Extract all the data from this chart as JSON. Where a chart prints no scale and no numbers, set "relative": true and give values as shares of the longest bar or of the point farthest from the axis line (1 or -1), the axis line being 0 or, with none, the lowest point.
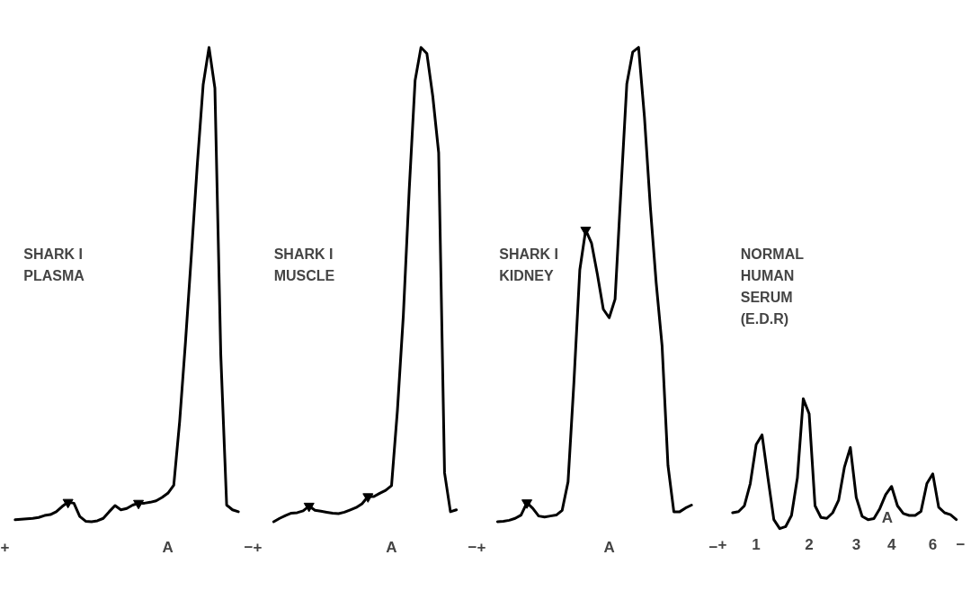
{
  "chart_data": [
    {
      "type": "line",
      "title": "SHARK I\nPLASMA",
      "relative": true,
      "categories": [
        "+",
        null,
        null,
        null,
        null,
        null,
        null,
        null,
        null,
        null,
        null,
        null,
        null,
        null,
        null,
        null,
        null,
        null,
        null,
        null,
        null,
        null,
        null,
        null,
        null,
        null,
        null,
        null,
        "A",
        null,
        null,
        null,
        null,
        null,
        null,
        null,
        null,
        null,
        null,
        null,
        null,
        null,
        "−"
      ],
      "series": [
        {
          "color": "#000000",
          "values": [
            null,
            null,
            0.004,
            0.005,
            0.006,
            0.007,
            0.009,
            0.013,
            0.015,
            0.021,
            0.032,
            0.041,
            0.039,
            0.011,
            0.001,
            0,
            0.002,
            0.007,
            0.021,
            0.034,
            0.025,
            0.028,
            0.035,
            0.039,
            0.039,
            0.041,
            0.044,
            0.051,
            0.06,
            0.077,
            0.211,
            0.38,
            0.563,
            0.752,
            0.921,
            1,
            0.914,
            0.352,
            0.035,
            0.025,
            0.021,
            null,
            null
          ]
        },
        {
          "type": "scatter",
          "marker": "triangle",
          "color": "#000000",
          "values": [
            null,
            null,
            null,
            null,
            null,
            null,
            null,
            null,
            null,
            null,
            null,
            0.041,
            null,
            null,
            null,
            null,
            null,
            null,
            null,
            null,
            null,
            null,
            null,
            0.039,
            null,
            null,
            null,
            null,
            null,
            null,
            null,
            null,
            null,
            null,
            null,
            null,
            null,
            null,
            null,
            null,
            null,
            null,
            null
          ]
        }
      ]
    },
    {
      "type": "line",
      "title": "SHARK I\nMUSCLE",
      "relative": true,
      "categories": [
        "+",
        null,
        null,
        null,
        null,
        null,
        null,
        null,
        null,
        null,
        null,
        null,
        null,
        null,
        null,
        null,
        null,
        null,
        null,
        null,
        null,
        null,
        null,
        "A",
        null,
        null,
        null,
        null,
        null,
        null,
        null,
        null,
        null,
        null,
        null,
        null,
        null,
        "−"
      ],
      "series": [
        {
          "color": "#000000",
          "values": [
            null,
            null,
            null,
            0,
            0.007,
            0.013,
            0.018,
            0.019,
            0.023,
            0.033,
            0.024,
            0.022,
            0.02,
            0.018,
            0.017,
            0.02,
            0.025,
            0.03,
            0.038,
            0.053,
            0.053,
            0.06,
            0.066,
            0.076,
            0.235,
            0.434,
            0.699,
            0.93,
            1,
            0.987,
            0.897,
            0.778,
            0.103,
            0.021,
            0.025,
            null,
            null,
            null
          ]
        },
        {
          "type": "scatter",
          "marker": "triangle",
          "color": "#000000",
          "values": [
            null,
            null,
            null,
            null,
            null,
            null,
            null,
            null,
            null,
            0.033,
            null,
            null,
            null,
            null,
            null,
            null,
            null,
            null,
            null,
            0.053,
            null,
            null,
            null,
            null,
            null,
            null,
            null,
            null,
            null,
            null,
            null,
            null,
            null,
            null,
            null,
            null,
            null,
            null
          ]
        }
      ]
    },
    {
      "type": "line",
      "title": "SHARK I\nKIDNEY",
      "relative": true,
      "categories": [
        "+",
        null,
        null,
        null,
        null,
        null,
        null,
        null,
        null,
        null,
        null,
        null,
        null,
        null,
        null,
        null,
        null,
        null,
        null,
        null,
        null,
        null,
        "A",
        null,
        null,
        null,
        null,
        null,
        null,
        null,
        null,
        null,
        null,
        null,
        null,
        null,
        null,
        null,
        null,
        null,
        "−"
      ],
      "series": [
        {
          "color": "#000000",
          "values": [
            null,
            null,
            null,
            0,
            0.001,
            0.003,
            0.007,
            0.014,
            0.04,
            0.028,
            0.012,
            0.01,
            0.012,
            0.014,
            0.024,
            0.084,
            0.294,
            0.531,
            0.615,
            0.587,
            0.521,
            0.448,
            0.43,
            0.469,
            0.699,
            0.923,
            0.99,
            1,
            0.853,
            0.664,
            0.503,
            0.371,
            0.119,
            0.021,
            0.021,
            0.029,
            0.035,
            null,
            null,
            null,
            null
          ]
        },
        {
          "type": "scatter",
          "marker": "triangle",
          "color": "#000000",
          "values": [
            null,
            null,
            null,
            null,
            null,
            null,
            null,
            null,
            0.04,
            null,
            null,
            null,
            null,
            null,
            null,
            null,
            null,
            null,
            0.615,
            null,
            null,
            null,
            null,
            null,
            null,
            null,
            null,
            null,
            null,
            null,
            null,
            null,
            null,
            null,
            null,
            null,
            null,
            null,
            null,
            null,
            null
          ]
        }
      ]
    },
    {
      "type": "line",
      "title": "NORMAL\nHUMAN\nSERUM\n(E.D.R)",
      "relative": true,
      "categories": [
        "+",
        null,
        null,
        null,
        null,
        null,
        "1",
        null,
        null,
        null,
        null,
        null,
        null,
        null,
        null,
        "2",
        null,
        null,
        null,
        null,
        null,
        null,
        null,
        "3",
        null,
        null,
        null,
        null,
        null,
        "4",
        null,
        null,
        null,
        null,
        null,
        null,
        "6",
        null,
        null,
        null,
        null,
        "−"
      ],
      "series": [
        {
          "color": "#000000",
          "values": [
            null,
            null,
            0.122,
            0.131,
            0.176,
            0.347,
            0.647,
            0.722,
            0.39,
            0.069,
            0,
            0.015,
            0.101,
            0.39,
            1,
            0.884,
            0.176,
            0.086,
            0.079,
            0.122,
            0.218,
            0.475,
            0.625,
            0.24,
            0.094,
            0.069,
            0.077,
            0.154,
            0.261,
            0.325,
            0.176,
            0.116,
            0.101,
            0.101,
            0.133,
            0.347,
            0.422,
            0.165,
            0.122,
            0.107,
            0.069,
            null
          ]
        }
      ],
      "annotations": [
        "A"
      ]
    }
  ]
}
